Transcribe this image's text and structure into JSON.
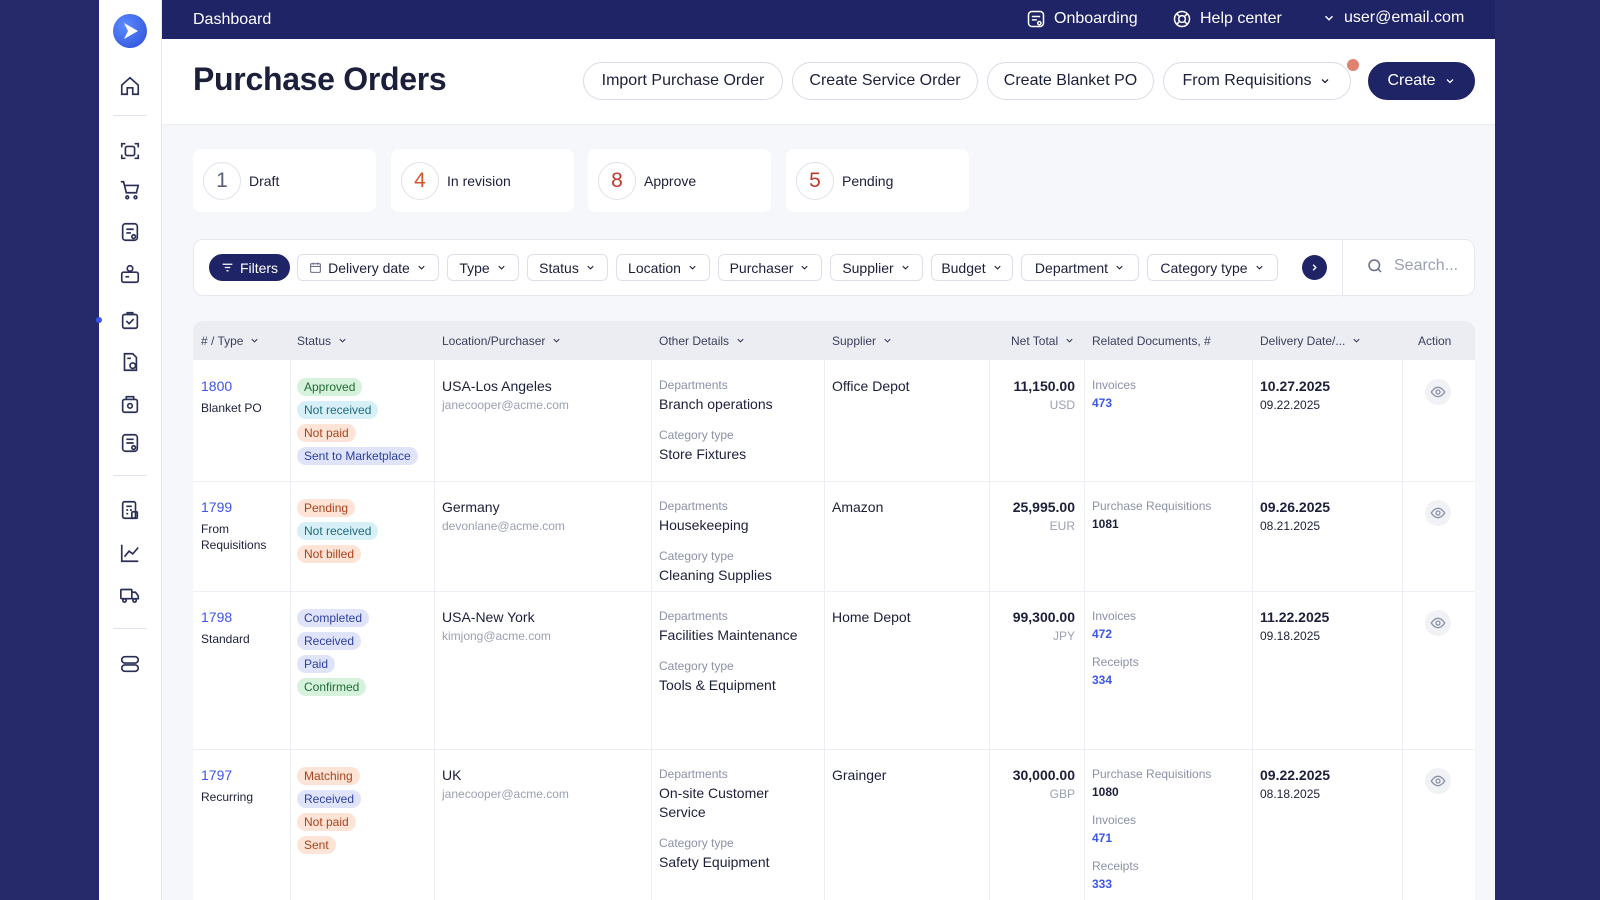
{
  "topbar": {
    "breadcrumb": "Dashboard",
    "onboarding": "Onboarding",
    "help_center": "Help center",
    "user": "user@email.com"
  },
  "header": {
    "title": "Purchase Orders",
    "import_po": "Import Purchase Order",
    "create_service": "Create Service Order",
    "create_blanket": "Create Blanket PO",
    "from_requisitions": "From Requisitions",
    "create": "Create"
  },
  "summary": [
    {
      "count": "1",
      "label": "Draft",
      "color": "#5a5f78"
    },
    {
      "count": "4",
      "label": "In revision",
      "color": "#d2542d"
    },
    {
      "count": "8",
      "label": "Approve",
      "color": "#c0392b"
    },
    {
      "count": "5",
      "label": "Pending",
      "color": "#c0392b"
    }
  ],
  "filters": {
    "filters_btn": "Filters",
    "delivery_date": "Delivery date",
    "type": "Type",
    "status": "Status",
    "location": "Location",
    "purchaser": "Purchaser",
    "supplier": "Supplier",
    "budget": "Budget",
    "department": "Department",
    "category_type": "Category type",
    "search_placeholder": "Search..."
  },
  "columns": {
    "type": "# / Type",
    "status": "Status",
    "location": "Location/Purchaser",
    "details": "Other Details",
    "supplier": "Supplier",
    "net_total": "Net Total",
    "related": "Related Documents, #",
    "delivery": "Delivery Date/...",
    "action": "Action"
  },
  "badge_colors": {
    "green": "#d7f2dc",
    "blue": "#dfe4fb",
    "cyan": "#d7f0f7",
    "orange": "#fde4d6"
  },
  "rows": [
    {
      "number": "1800",
      "type": "Blanket PO",
      "statuses": [
        {
          "label": "Approved",
          "tone": "green"
        },
        {
          "label": "Not received",
          "tone": "cyan"
        },
        {
          "label": "Not paid",
          "tone": "orange"
        },
        {
          "label": "Sent to Marketplace",
          "tone": "blue"
        }
      ],
      "location": "USA-Los Angeles",
      "email": "janecooper@acme.com",
      "dept_label": "Departments",
      "department": "Branch operations",
      "cat_label": "Category type",
      "category": "Store Fixtures",
      "supplier": "Office Depot",
      "amount": "11,150.00",
      "currency": "USD",
      "docs": [
        {
          "label": "Invoices",
          "value": "473",
          "link": true
        }
      ],
      "delivery": "10.27.2025",
      "created": "09.22.2025"
    },
    {
      "number": "1799",
      "type": "From Requisitions",
      "statuses": [
        {
          "label": "Pending",
          "tone": "orange"
        },
        {
          "label": "Not received",
          "tone": "cyan"
        },
        {
          "label": "Not billed",
          "tone": "orange"
        }
      ],
      "location": "Germany",
      "email": "devonlane@acme.com",
      "dept_label": "Departments",
      "department": "Housekeeping",
      "cat_label": "Category type",
      "category": "Cleaning Supplies",
      "supplier": "Amazon",
      "amount": "25,995.00",
      "currency": "EUR",
      "docs": [
        {
          "label": "Purchase Requisitions",
          "value": "1081",
          "link": false
        }
      ],
      "delivery": "09.26.2025",
      "created": "08.21.2025"
    },
    {
      "number": "1798",
      "type": "Standard",
      "statuses": [
        {
          "label": "Completed",
          "tone": "blue"
        },
        {
          "label": "Received",
          "tone": "blue"
        },
        {
          "label": "Paid",
          "tone": "blue"
        },
        {
          "label": "Confirmed",
          "tone": "green"
        }
      ],
      "location": "USA-New York",
      "email": "kimjong@acme.com",
      "dept_label": "Departments",
      "department": "Facilities Maintenance",
      "cat_label": "Category type",
      "category": "Tools & Equipment",
      "supplier": "Home Depot",
      "amount": "99,300.00",
      "currency": "JPY",
      "docs": [
        {
          "label": "Invoices",
          "value": "472",
          "link": true
        },
        {
          "label": "Receipts",
          "value": "334",
          "link": true
        }
      ],
      "delivery": "11.22.2025",
      "created": "09.18.2025"
    },
    {
      "number": "1797",
      "type": "Recurring",
      "statuses": [
        {
          "label": "Matching",
          "tone": "orange"
        },
        {
          "label": "Received",
          "tone": "blue"
        },
        {
          "label": "Not paid",
          "tone": "orange"
        },
        {
          "label": "Sent",
          "tone": "orange"
        }
      ],
      "location": "UK",
      "email": "janecooper@acme.com",
      "dept_label": "Departments",
      "department": "On-site Customer Service",
      "cat_label": "Category type",
      "category": "Safety Equipment",
      "supplier": "Grainger",
      "amount": "30,000.00",
      "currency": "GBP",
      "docs": [
        {
          "label": "Purchase Requisitions",
          "value": "1080",
          "link": false
        },
        {
          "label": "Invoices",
          "value": "471",
          "link": true
        },
        {
          "label": "Receipts",
          "value": "333",
          "link": true
        }
      ],
      "delivery": "09.22.2025",
      "created": "08.18.2025"
    }
  ]
}
